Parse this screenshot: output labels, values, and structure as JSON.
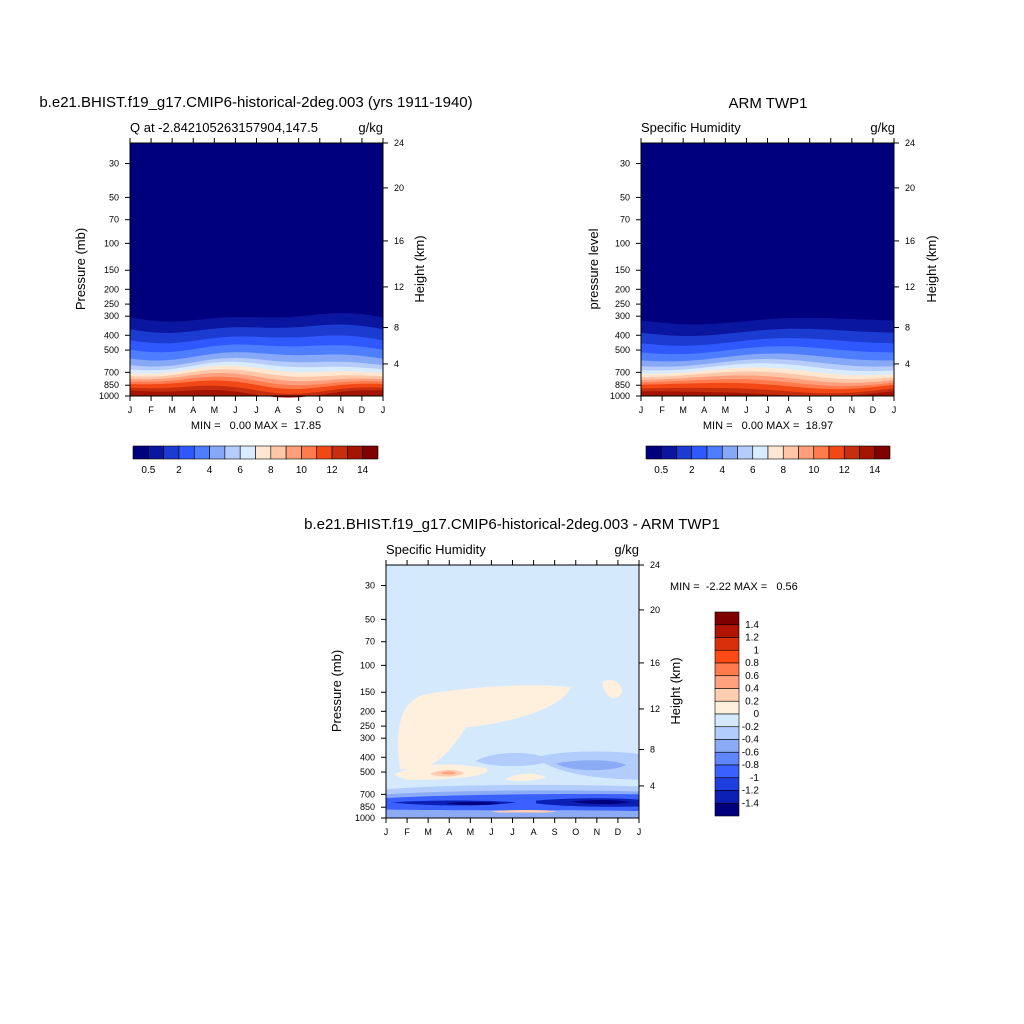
{
  "chart_data": [
    {
      "type": "heatmap",
      "title": "b.e21.BHIST.f19_g17.CMIP6-historical-2deg.003 (yrs 1911-1940)",
      "left_label": "Q at -2.842105263157904,147.5",
      "units": "g/kg",
      "ylabel": "Pressure (mb)",
      "ylabel_right": "Height (km)",
      "x_ticks": [
        "J",
        "F",
        "M",
        "A",
        "M",
        "J",
        "J",
        "A",
        "S",
        "O",
        "N",
        "D",
        "J"
      ],
      "y_ticks": [
        "30",
        "50",
        "70",
        "100",
        "150",
        "200",
        "250",
        "300",
        "400",
        "500",
        "700",
        "850",
        "1000"
      ],
      "y_values": [
        30,
        50,
        70,
        100,
        150,
        200,
        250,
        300,
        400,
        500,
        700,
        850,
        1000
      ],
      "height_ticks": [
        "24",
        "20",
        "16",
        "12",
        "8",
        "4"
      ],
      "height_values": [
        24,
        20,
        16,
        12,
        8,
        4
      ],
      "y_scale": "log",
      "stats": "MIN =   0.00 MAX =  17.85",
      "min": 0.0,
      "max": 17.85,
      "colorbar": {
        "orientation": "horizontal",
        "labels": [
          "0.5",
          "2",
          "4",
          "6",
          "8",
          "10",
          "12",
          "14"
        ],
        "levels": [
          0.5,
          1,
          2,
          3,
          4,
          5,
          6,
          7,
          8,
          9,
          10,
          11,
          12,
          13,
          14
        ],
        "colors": [
          "#00007f",
          "#0b16a0",
          "#1c3bd0",
          "#3058ff",
          "#4f7dff",
          "#87a8f7",
          "#b6cdfb",
          "#d9ecff",
          "#ffe7d2",
          "#ffc6a8",
          "#ff9f7d",
          "#ff7a4d",
          "#f24816",
          "#c62e0e",
          "#a31500",
          "#7f0000"
        ]
      }
    },
    {
      "type": "heatmap",
      "title": "ARM TWP1",
      "left_label": "Specific Humidity",
      "units": "g/kg",
      "ylabel": "pressure level",
      "ylabel_right": "Height (km)",
      "x_ticks": [
        "J",
        "F",
        "M",
        "A",
        "M",
        "J",
        "J",
        "A",
        "S",
        "O",
        "N",
        "D",
        "J"
      ],
      "y_ticks": [
        "30",
        "50",
        "70",
        "100",
        "150",
        "200",
        "250",
        "300",
        "400",
        "500",
        "700",
        "850",
        "1000"
      ],
      "y_values": [
        30,
        50,
        70,
        100,
        150,
        200,
        250,
        300,
        400,
        500,
        700,
        850,
        1000
      ],
      "height_ticks": [
        "24",
        "20",
        "16",
        "12",
        "8",
        "4"
      ],
      "height_values": [
        24,
        20,
        16,
        12,
        8,
        4
      ],
      "y_scale": "log",
      "stats": "MIN =   0.00 MAX =  18.97",
      "min": 0.0,
      "max": 18.97,
      "colorbar": {
        "orientation": "horizontal",
        "labels": [
          "0.5",
          "2",
          "4",
          "6",
          "8",
          "10",
          "12",
          "14"
        ],
        "levels": [
          0.5,
          1,
          2,
          3,
          4,
          5,
          6,
          7,
          8,
          9,
          10,
          11,
          12,
          13,
          14
        ],
        "colors": [
          "#00007f",
          "#0b16a0",
          "#1c3bd0",
          "#3058ff",
          "#4f7dff",
          "#87a8f7",
          "#b6cdfb",
          "#d9ecff",
          "#ffe7d2",
          "#ffc6a8",
          "#ff9f7d",
          "#ff7a4d",
          "#f24816",
          "#c62e0e",
          "#a31500",
          "#7f0000"
        ]
      }
    },
    {
      "type": "heatmap",
      "title": "b.e21.BHIST.f19_g17.CMIP6-historical-2deg.003 - ARM TWP1",
      "left_label": "Specific Humidity",
      "units": "g/kg",
      "ylabel": "Pressure (mb)",
      "ylabel_right": "Height (km)",
      "x_ticks": [
        "J",
        "F",
        "M",
        "A",
        "M",
        "J",
        "J",
        "A",
        "S",
        "O",
        "N",
        "D",
        "J"
      ],
      "y_ticks": [
        "30",
        "50",
        "70",
        "100",
        "150",
        "200",
        "250",
        "300",
        "400",
        "500",
        "700",
        "850",
        "1000"
      ],
      "y_values": [
        30,
        50,
        70,
        100,
        150,
        200,
        250,
        300,
        400,
        500,
        700,
        850,
        1000
      ],
      "height_ticks": [
        "24",
        "20",
        "16",
        "12",
        "8",
        "4"
      ],
      "height_values": [
        24,
        20,
        16,
        12,
        8,
        4
      ],
      "y_scale": "log",
      "stats": "MIN =  -2.22 MAX =   0.56",
      "min": -2.22,
      "max": 0.56,
      "colorbar": {
        "orientation": "vertical",
        "labels": [
          "1.4",
          "1.2",
          "1",
          "0.8",
          "0.6",
          "0.4",
          "0.2",
          "0",
          "-0.2",
          "-0.4",
          "-0.6",
          "-0.8",
          "-1",
          "-1.2",
          "-1.4"
        ],
        "levels": [
          1.4,
          1.2,
          1,
          0.8,
          0.6,
          0.4,
          0.2,
          0,
          -0.2,
          -0.4,
          -0.6,
          -0.8,
          -1,
          -1.2,
          -1.4
        ],
        "colors": [
          "#7f0000",
          "#b01300",
          "#d9300b",
          "#ff4a14",
          "#ff7a4d",
          "#ffa17f",
          "#ffcdb0",
          "#fff0de",
          "#d5e9fd",
          "#b2ccfb",
          "#8cabf7",
          "#5e86ff",
          "#3a60ff",
          "#1f3ee0",
          "#0b1fb4",
          "#00007f"
        ]
      }
    }
  ]
}
